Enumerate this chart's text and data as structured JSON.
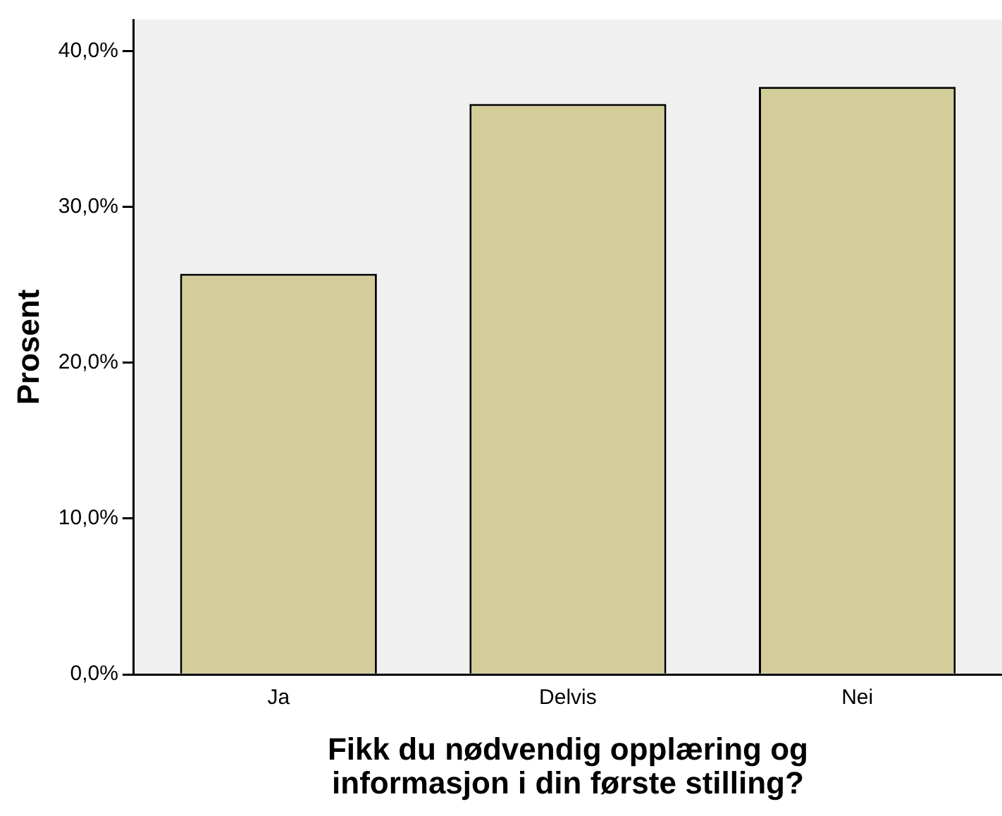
{
  "chart_data": {
    "type": "bar",
    "xlabel": "Fikk du nødvendig opplæring og\ninformasjon i din første stilling?",
    "ylabel": "Prosent",
    "categories": [
      "Ja",
      "Delvis",
      "Nei"
    ],
    "values": [
      25.7,
      36.6,
      37.7
    ],
    "color": "#d3ce99",
    "ylim": [
      0,
      42
    ],
    "yticks": [
      {
        "value": 0,
        "label": "0,0%"
      },
      {
        "value": 10,
        "label": "10,0%"
      },
      {
        "value": 20,
        "label": "20,0%"
      },
      {
        "value": 30,
        "label": "30,0%"
      },
      {
        "value": 40,
        "label": "40,0%"
      }
    ],
    "grid": false,
    "legend": false
  }
}
